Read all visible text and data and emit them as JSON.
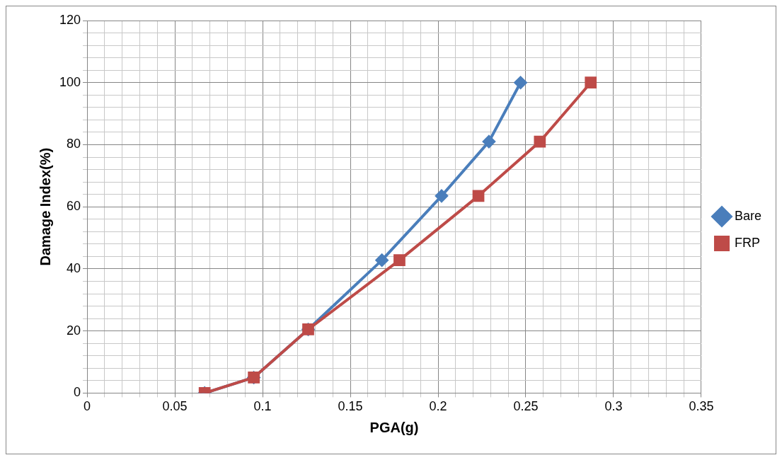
{
  "chart_data": {
    "type": "line",
    "xlabel": "PGA(g)",
    "ylabel": "Damage Index(%)",
    "series": [
      {
        "name": "Bare",
        "color": "#4a7ebb",
        "marker": "diamond",
        "x": [
          0.067,
          0.095,
          0.126,
          0.168,
          0.202,
          0.229,
          0.247
        ],
        "values": [
          0,
          5,
          20.5,
          42.8,
          63.5,
          81,
          100
        ]
      },
      {
        "name": "FRP",
        "color": "#be4b48",
        "marker": "square",
        "x": [
          0.067,
          0.095,
          0.126,
          0.178,
          0.223,
          0.258,
          0.287
        ],
        "values": [
          0,
          5,
          20.5,
          42.8,
          63.5,
          81,
          100
        ]
      }
    ],
    "xlim": [
      0,
      0.35
    ],
    "xticks": [
      0,
      {
        "value": 0.01,
        "label": null
      },
      {
        "value": 0.02,
        "label": null
      },
      {
        "value": 0.03,
        "label": null
      },
      {
        "value": 0.04,
        "label": null
      },
      0.05,
      {
        "value": 0.06,
        "label": null
      },
      {
        "value": 0.07,
        "label": null
      },
      {
        "value": 0.08,
        "label": null
      },
      {
        "value": 0.09,
        "label": null
      },
      0.1,
      {
        "value": 0.11,
        "label": null
      },
      {
        "value": 0.12,
        "label": null
      },
      {
        "value": 0.13,
        "label": null
      },
      {
        "value": 0.14,
        "label": null
      },
      0.15,
      {
        "value": 0.16,
        "label": null
      },
      {
        "value": 0.17,
        "label": null
      },
      {
        "value": 0.18,
        "label": null
      },
      {
        "value": 0.19,
        "label": null
      },
      0.2,
      {
        "value": 0.21,
        "label": null
      },
      {
        "value": 0.22,
        "label": null
      },
      {
        "value": 0.23,
        "label": null
      },
      {
        "value": 0.24,
        "label": null
      },
      0.25,
      {
        "value": 0.26,
        "label": null
      },
      {
        "value": 0.27,
        "label": null
      },
      {
        "value": 0.28,
        "label": null
      },
      {
        "value": 0.29,
        "label": null
      },
      0.3,
      {
        "value": 0.31,
        "label": null
      },
      {
        "value": 0.32,
        "label": null
      },
      {
        "value": 0.33,
        "label": null
      },
      {
        "value": 0.34,
        "label": null
      },
      0.35
    ],
    "ylim": [
      0,
      120
    ],
    "yticks": [
      0,
      {
        "value": 4,
        "label": null
      },
      {
        "value": 8,
        "label": null
      },
      {
        "value": 12,
        "label": null
      },
      {
        "value": 16,
        "label": null
      },
      20,
      {
        "value": 24,
        "label": null
      },
      {
        "value": 28,
        "label": null
      },
      {
        "value": 32,
        "label": null
      },
      {
        "value": 36,
        "label": null
      },
      40,
      {
        "value": 44,
        "label": null
      },
      {
        "value": 48,
        "label": null
      },
      {
        "value": 52,
        "label": null
      },
      {
        "value": 56,
        "label": null
      },
      60,
      {
        "value": 64,
        "label": null
      },
      {
        "value": 68,
        "label": null
      },
      {
        "value": 72,
        "label": null
      },
      {
        "value": 76,
        "label": null
      },
      80,
      {
        "value": 84,
        "label": null
      },
      {
        "value": 88,
        "label": null
      },
      {
        "value": 92,
        "label": null
      },
      {
        "value": 96,
        "label": null
      },
      100,
      {
        "value": 104,
        "label": null
      },
      {
        "value": 108,
        "label": null
      },
      {
        "value": 112,
        "label": null
      },
      {
        "value": 116,
        "label": null
      },
      120
    ],
    "grid": true,
    "legend": "right",
    "line_style": "solid"
  }
}
